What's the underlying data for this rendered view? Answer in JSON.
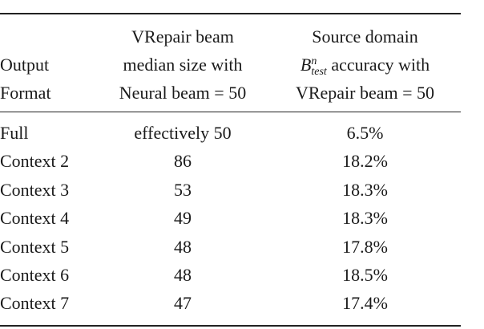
{
  "table": {
    "headers": {
      "col1": [
        "",
        "Output",
        "Format"
      ],
      "col2": [
        "VRepair beam",
        "median size with",
        "Neural beam = 50"
      ],
      "col3": {
        "line1": "Source domain",
        "line2_math_base": "B",
        "line2_math_sup": "n",
        "line2_math_sub": "test",
        "line2_text": " accuracy with",
        "line3": "VRepair beam = 50"
      }
    },
    "rows": [
      {
        "format": "Full",
        "beam": "effectively 50",
        "accuracy": "6.5%"
      },
      {
        "format": "Context 2",
        "beam": "86",
        "accuracy": "18.2%"
      },
      {
        "format": "Context 3",
        "beam": "53",
        "accuracy": "18.3%"
      },
      {
        "format": "Context 4",
        "beam": "49",
        "accuracy": "18.3%"
      },
      {
        "format": "Context 5",
        "beam": "48",
        "accuracy": "17.8%"
      },
      {
        "format": "Context 6",
        "beam": "48",
        "accuracy": "18.5%"
      },
      {
        "format": "Context 7",
        "beam": "47",
        "accuracy": "17.4%"
      }
    ]
  }
}
